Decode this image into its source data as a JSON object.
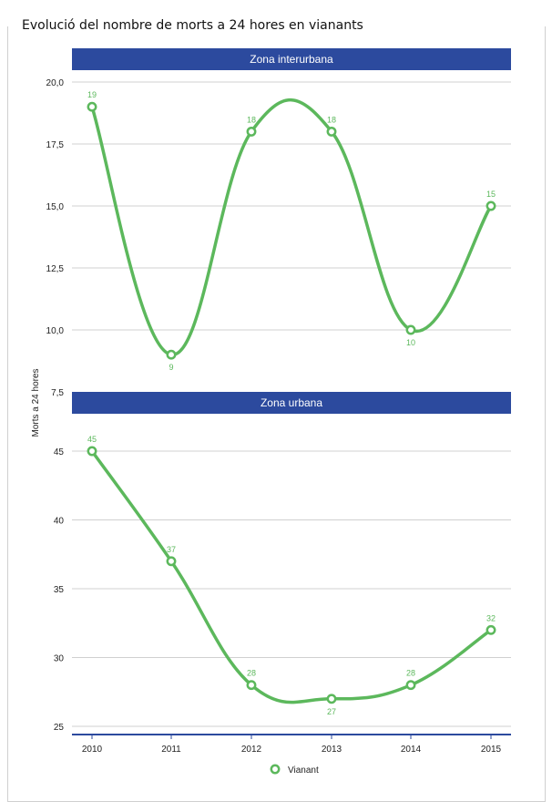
{
  "title": "Evolució del nombre de morts a 24 hores en vianants",
  "colors": {
    "series": "#5cb85c",
    "panel_header": "#2c4a9e",
    "grid": "#d0d0d0",
    "axis": "#2c4a9e"
  },
  "chart_data": {
    "type": "line",
    "title": "Evolució del nombre de morts a 24 hores en vianants",
    "ylabel": "Morts a 24 hores",
    "xlabel": "",
    "legend": {
      "position": "bottom",
      "entries": [
        "Vianant"
      ]
    },
    "x": [
      2010,
      2011,
      2012,
      2013,
      2014,
      2015
    ],
    "x_tick_labels": [
      "2010",
      "2011",
      "2012",
      "2013",
      "2014",
      "2015"
    ],
    "grid": true,
    "panels": [
      {
        "name": "Zona interurbana",
        "ylim": [
          7.5,
          20
        ],
        "y_ticks": [
          "20,0",
          "17,5",
          "15,0",
          "12,5",
          "10,0",
          "7,5"
        ],
        "y_tick_values": [
          20,
          17.5,
          15,
          12.5,
          10,
          7.5
        ],
        "series": [
          {
            "name": "Vianant",
            "values": [
              19,
              9,
              18,
              18,
              10,
              15
            ]
          }
        ]
      },
      {
        "name": "Zona urbana",
        "ylim": [
          25,
          45
        ],
        "y_ticks": [
          "45",
          "40",
          "35",
          "30",
          "25"
        ],
        "y_tick_values": [
          45,
          40,
          35,
          30,
          25
        ],
        "series": [
          {
            "name": "Vianant",
            "values": [
              45,
              37,
              28,
              27,
              28,
              32
            ]
          }
        ]
      }
    ]
  }
}
